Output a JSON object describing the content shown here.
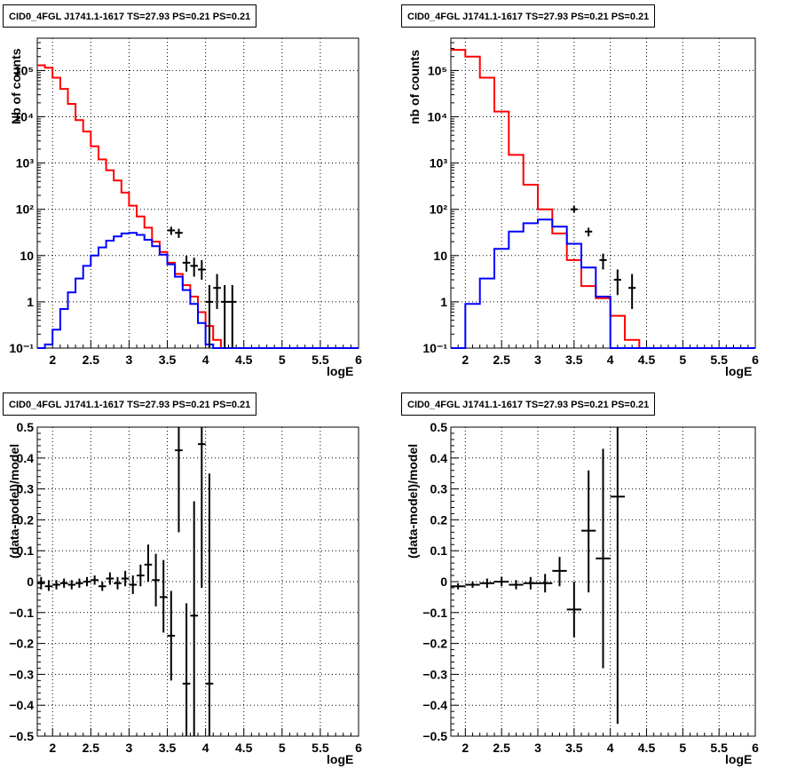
{
  "chart_data": [
    {
      "id": "top-left",
      "type": "line",
      "title": "CID0_4FGL J1741.1-1617 TS=27.93 PS=0.21 PS=0.21",
      "xlabel": "logE",
      "ylabel": "Nb of counts",
      "xlim": [
        1.8,
        6.0
      ],
      "ylim": [
        0.1,
        500000
      ],
      "ylog": true,
      "grid": true,
      "xticks": [
        "2",
        "2.5",
        "3",
        "3.5",
        "4",
        "4.5",
        "5",
        "5.5",
        "6"
      ],
      "yticks": [
        "10⁻¹",
        "1",
        "10",
        "10²",
        "10³",
        "10⁴",
        "10⁵"
      ],
      "bin_edges": [
        1.8,
        1.9,
        2.0,
        2.1,
        2.2,
        2.3,
        2.4,
        2.5,
        2.6,
        2.7,
        2.8,
        2.9,
        3.0,
        3.1,
        3.2,
        3.3,
        3.4,
        3.5,
        3.6,
        3.7,
        3.8,
        3.9,
        4.0,
        4.1,
        4.2,
        4.3,
        4.4,
        4.5,
        4.6,
        4.7,
        4.8,
        4.9,
        5.0,
        5.1,
        5.2,
        5.3,
        5.4,
        5.5,
        5.6,
        5.7,
        5.8,
        5.9,
        6.0
      ],
      "series": [
        {
          "color": "#ff0000",
          "kind": "step",
          "values": [
            130000,
            115000,
            70000,
            40000,
            19000,
            8500,
            4800,
            2300,
            1200,
            700,
            420,
            230,
            120,
            70,
            40,
            20,
            12,
            7,
            4,
            2.3,
            1.3,
            0.6,
            0.3,
            0.15,
            0.1,
            0.1,
            0.1,
            0.1,
            0.1,
            0.1,
            0.1,
            0.1,
            0.1,
            0.1,
            0.1,
            0.1,
            0.1,
            0.1,
            0.1,
            0.1,
            0.1,
            0.1
          ]
        },
        {
          "color": "#0000ff",
          "kind": "step",
          "values": [
            0.1,
            0.12,
            0.25,
            0.7,
            1.6,
            3.2,
            6,
            10,
            15,
            21,
            26,
            30,
            31,
            28,
            22,
            16,
            10.5,
            6.5,
            3.5,
            1.8,
            0.9,
            0.35,
            0.12,
            0.1,
            0.1,
            0.1,
            0.1,
            0.1,
            0.1,
            0.1,
            0.1,
            0.1,
            0.1,
            0.1,
            0.1,
            0.1,
            0.1,
            0.1,
            0.1,
            0.1,
            0.1,
            0.1
          ]
        },
        {
          "color": "#000000",
          "kind": "points",
          "points": [
            {
              "x": 3.55,
              "y": 35,
              "lo": 28,
              "hi": 42
            },
            {
              "x": 3.65,
              "y": 31,
              "lo": 24,
              "hi": 38
            },
            {
              "x": 3.75,
              "y": 7,
              "lo": 4.5,
              "hi": 10
            },
            {
              "x": 3.85,
              "y": 6,
              "lo": 3.5,
              "hi": 9
            },
            {
              "x": 3.95,
              "y": 5,
              "lo": 3,
              "hi": 8
            },
            {
              "x": 4.05,
              "y": 1,
              "lo": 0.1,
              "hi": 2.3
            },
            {
              "x": 4.15,
              "y": 2,
              "lo": 0.7,
              "hi": 4
            },
            {
              "x": 4.25,
              "y": 1,
              "lo": 0.1,
              "hi": 2.3
            },
            {
              "x": 4.35,
              "y": 1,
              "lo": 0.1,
              "hi": 2.3
            }
          ]
        }
      ]
    },
    {
      "id": "top-right",
      "type": "line",
      "title": "CID0_4FGL J1741.1-1617 TS=27.93 PS=0.21 PS=0.21",
      "xlabel": "logE",
      "ylabel": "nb of counts",
      "xlim": [
        1.8,
        6.0
      ],
      "ylim": [
        0.1,
        500000
      ],
      "ylog": true,
      "grid": true,
      "xticks": [
        "2",
        "2.5",
        "3",
        "3.5",
        "4",
        "4.5",
        "5",
        "5.5",
        "6"
      ],
      "yticks": [
        "10⁻¹",
        "1",
        "10",
        "10²",
        "10³",
        "10⁴",
        "10⁵"
      ],
      "bin_edges": [
        1.8,
        2.0,
        2.2,
        2.4,
        2.6,
        2.8,
        3.0,
        3.2,
        3.4,
        3.6,
        3.8,
        4.0,
        4.2,
        4.4,
        4.6,
        4.8,
        5.0,
        5.2,
        5.4,
        5.6,
        5.8,
        6.0
      ],
      "series": [
        {
          "color": "#ff0000",
          "kind": "step",
          "values": [
            280000,
            200000,
            70000,
            13000,
            1500,
            340,
            100,
            30,
            8,
            2.2,
            1.2,
            0.5,
            0.15,
            0.1,
            0.1,
            0.1,
            0.1,
            0.1,
            0.1,
            0.1,
            0.1
          ]
        },
        {
          "color": "#0000ff",
          "kind": "step",
          "values": [
            0.1,
            0.9,
            3.2,
            14,
            33,
            50,
            60,
            42,
            18,
            5.5,
            1.3,
            0.1,
            0.1,
            0.1,
            0.1,
            0.1,
            0.1,
            0.1,
            0.1,
            0.1,
            0.1
          ]
        },
        {
          "color": "#000000",
          "kind": "points",
          "points": [
            {
              "x": 3.5,
              "y": 100,
              "lo": 85,
              "hi": 118
            },
            {
              "x": 3.7,
              "y": 33,
              "lo": 26,
              "hi": 40
            },
            {
              "x": 3.9,
              "y": 8,
              "lo": 5,
              "hi": 11
            },
            {
              "x": 4.1,
              "y": 3,
              "lo": 1.4,
              "hi": 5
            },
            {
              "x": 4.3,
              "y": 2,
              "lo": 0.7,
              "hi": 4
            }
          ]
        }
      ]
    },
    {
      "id": "bottom-left",
      "type": "scatter",
      "title": "CID0_4FGL J1741.1-1617 TS=27.93 PS=0.21 PS=0.21",
      "xlabel": "logE",
      "ylabel": "(data-model)/model",
      "xlim": [
        1.8,
        6.0
      ],
      "ylim": [
        -0.5,
        0.5
      ],
      "ylog": false,
      "grid": true,
      "xticks": [
        "2",
        "2.5",
        "3",
        "3.5",
        "4",
        "4.5",
        "5",
        "5.5",
        "6"
      ],
      "yticks": [
        "−0.5",
        "−0.4",
        "−0.3",
        "−0.2",
        "−0.1",
        "0",
        "0.1",
        "0.2",
        "0.3",
        "0.4",
        "0.5"
      ],
      "xhalf": 0.05,
      "series": [
        {
          "color": "#000000",
          "kind": "points",
          "points": [
            {
              "x": 1.85,
              "y": -0.005,
              "lo": -0.025,
              "hi": 0.015
            },
            {
              "x": 1.95,
              "y": -0.015,
              "lo": -0.03,
              "hi": 0.005
            },
            {
              "x": 2.05,
              "y": -0.01,
              "lo": -0.025,
              "hi": 0.005
            },
            {
              "x": 2.15,
              "y": -0.005,
              "lo": -0.02,
              "hi": 0.01
            },
            {
              "x": 2.25,
              "y": -0.01,
              "lo": -0.025,
              "hi": 0.005
            },
            {
              "x": 2.35,
              "y": -0.005,
              "lo": -0.02,
              "hi": 0.01
            },
            {
              "x": 2.45,
              "y": 0.0,
              "lo": -0.015,
              "hi": 0.015
            },
            {
              "x": 2.55,
              "y": 0.005,
              "lo": -0.01,
              "hi": 0.02
            },
            {
              "x": 2.65,
              "y": -0.015,
              "lo": -0.03,
              "hi": 0.0
            },
            {
              "x": 2.75,
              "y": 0.01,
              "lo": -0.01,
              "hi": 0.03
            },
            {
              "x": 2.85,
              "y": -0.005,
              "lo": -0.025,
              "hi": 0.015
            },
            {
              "x": 2.95,
              "y": 0.01,
              "lo": -0.015,
              "hi": 0.035
            },
            {
              "x": 3.05,
              "y": -0.01,
              "lo": -0.04,
              "hi": 0.02
            },
            {
              "x": 3.15,
              "y": 0.02,
              "lo": -0.015,
              "hi": 0.055
            },
            {
              "x": 3.25,
              "y": 0.055,
              "lo": 0.0,
              "hi": 0.12
            },
            {
              "x": 3.35,
              "y": 0.005,
              "lo": -0.08,
              "hi": 0.09
            },
            {
              "x": 3.45,
              "y": -0.05,
              "lo": -0.165,
              "hi": 0.07
            },
            {
              "x": 3.55,
              "y": -0.175,
              "lo": -0.32,
              "hi": -0.03
            },
            {
              "x": 3.65,
              "y": 0.425,
              "lo": 0.16,
              "hi": 0.5
            },
            {
              "x": 3.75,
              "y": -0.33,
              "lo": -0.5,
              "hi": -0.07
            },
            {
              "x": 3.85,
              "y": -0.11,
              "lo": -0.5,
              "hi": 0.26
            },
            {
              "x": 3.95,
              "y": 0.445,
              "lo": -0.02,
              "hi": 0.5
            },
            {
              "x": 4.05,
              "y": -0.33,
              "lo": -0.5,
              "hi": 0.35
            }
          ]
        }
      ]
    },
    {
      "id": "bottom-right",
      "type": "scatter",
      "title": "CID0_4FGL J1741.1-1617 TS=27.93 PS=0.21 PS=0.21",
      "xlabel": "logE",
      "ylabel": "(data-model)/model",
      "xlim": [
        1.8,
        6.0
      ],
      "ylim": [
        -0.5,
        0.5
      ],
      "ylog": false,
      "grid": true,
      "xticks": [
        "2",
        "2.5",
        "3",
        "3.5",
        "4",
        "4.5",
        "5",
        "5.5",
        "6"
      ],
      "yticks": [
        "−0.5",
        "−0.4",
        "−0.3",
        "−0.2",
        "−0.1",
        "0",
        "0.1",
        "0.2",
        "0.3",
        "0.4",
        "0.5"
      ],
      "xhalf": 0.1,
      "series": [
        {
          "color": "#000000",
          "kind": "points",
          "points": [
            {
              "x": 1.9,
              "y": -0.015,
              "lo": -0.025,
              "hi": -0.005
            },
            {
              "x": 2.1,
              "y": -0.01,
              "lo": -0.02,
              "hi": 0.0
            },
            {
              "x": 2.3,
              "y": -0.005,
              "lo": -0.02,
              "hi": 0.01
            },
            {
              "x": 2.5,
              "y": 0.0,
              "lo": -0.015,
              "hi": 0.015
            },
            {
              "x": 2.7,
              "y": -0.01,
              "lo": -0.025,
              "hi": 0.005
            },
            {
              "x": 2.9,
              "y": -0.005,
              "lo": -0.025,
              "hi": 0.015
            },
            {
              "x": 3.1,
              "y": -0.005,
              "lo": -0.035,
              "hi": 0.025
            },
            {
              "x": 3.3,
              "y": 0.035,
              "lo": -0.015,
              "hi": 0.08
            },
            {
              "x": 3.5,
              "y": -0.09,
              "lo": -0.18,
              "hi": 0.0
            },
            {
              "x": 3.7,
              "y": 0.165,
              "lo": -0.035,
              "hi": 0.36
            },
            {
              "x": 3.9,
              "y": 0.075,
              "lo": -0.28,
              "hi": 0.43
            },
            {
              "x": 4.1,
              "y": 0.275,
              "lo": -0.46,
              "hi": 0.5
            }
          ]
        }
      ]
    }
  ]
}
